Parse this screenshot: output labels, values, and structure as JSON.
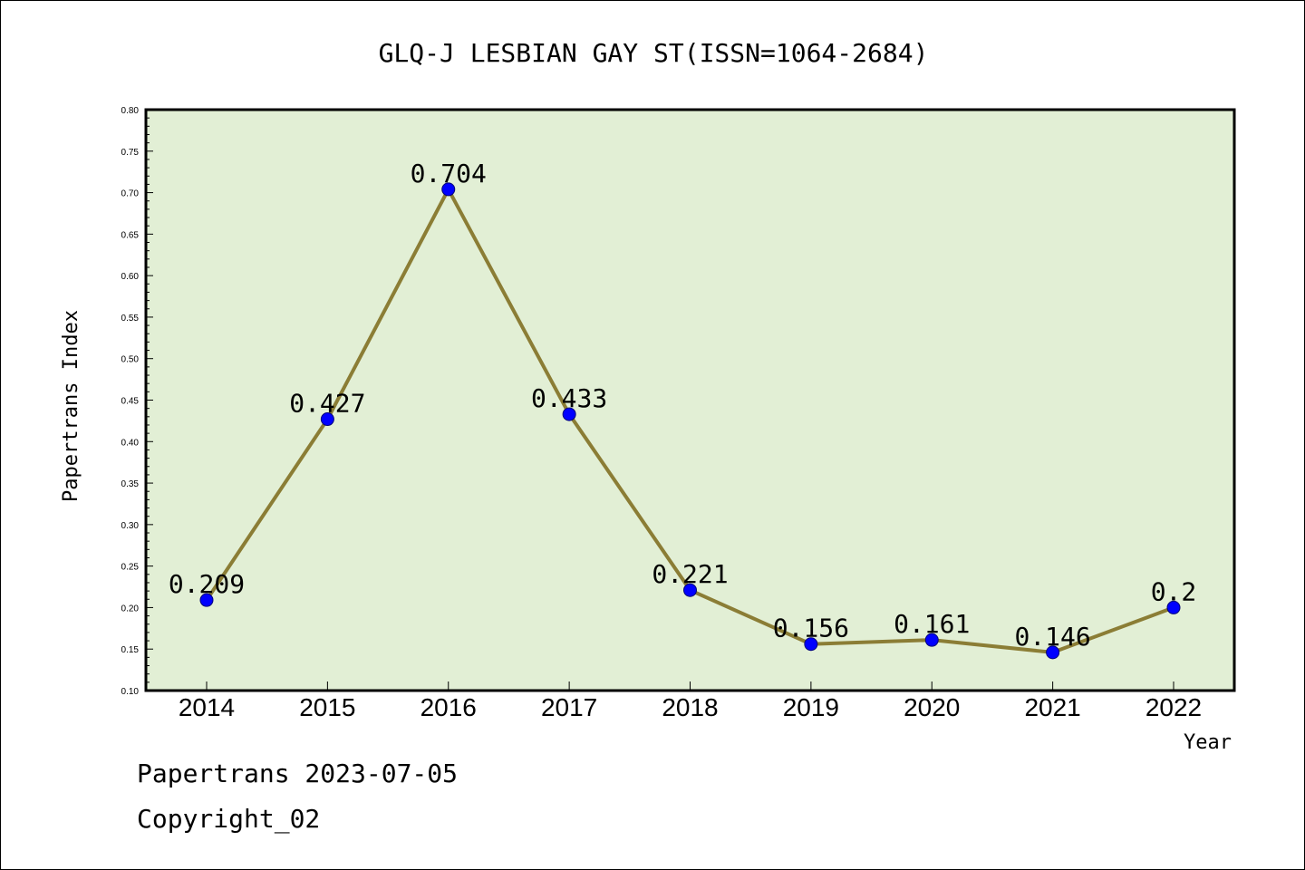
{
  "footer": {
    "line1": "Papertrans 2023-07-05",
    "line2": "Copyright_02"
  },
  "colors": {
    "plot_background": "#e2efd5",
    "line": "#8b7d35",
    "marker": "#0000ff",
    "axis": "#000000"
  },
  "chart_data": {
    "type": "line",
    "title": "GLQ-J LESBIAN GAY ST(ISSN=1064-2684)",
    "xlabel": "Year",
    "ylabel": "Papertrans Index",
    "ylim": [
      0.1,
      0.8
    ],
    "yticks": [
      "0.10",
      "0.15",
      "0.20",
      "0.25",
      "0.30",
      "0.35",
      "0.40",
      "0.45",
      "0.50",
      "0.55",
      "0.60",
      "0.65",
      "0.70",
      "0.75",
      "0.80"
    ],
    "grid": false,
    "categories": [
      "2014",
      "2015",
      "2016",
      "2017",
      "2018",
      "2019",
      "2020",
      "2021",
      "2022"
    ],
    "values": [
      0.209,
      0.427,
      0.704,
      0.433,
      0.221,
      0.156,
      0.161,
      0.146,
      0.2
    ],
    "data_labels": [
      "0.209",
      "0.427",
      "0.704",
      "0.433",
      "0.221",
      "0.156",
      "0.161",
      "0.146",
      "0.2"
    ]
  }
}
